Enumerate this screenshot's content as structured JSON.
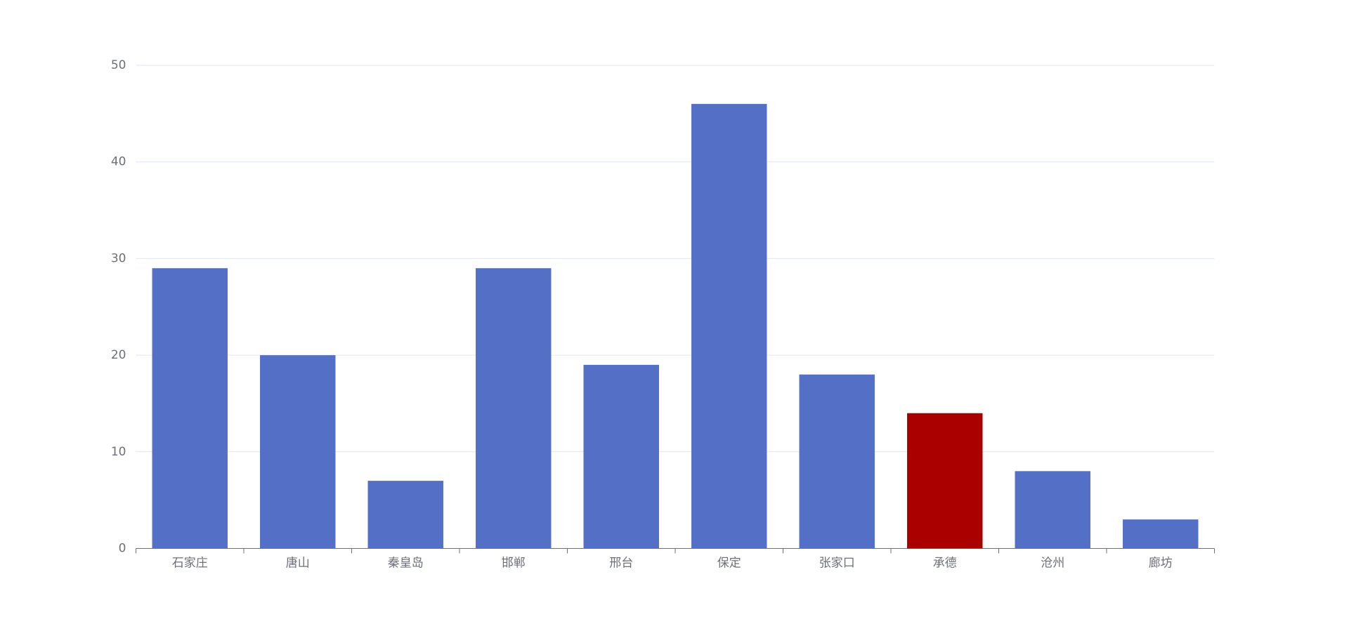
{
  "chart_data": {
    "type": "bar",
    "categories": [
      "石家庄",
      "唐山",
      "秦皇岛",
      "邯郸",
      "邢台",
      "保定",
      "张家口",
      "承德",
      "沧州",
      "廊坊"
    ],
    "values": [
      29,
      20,
      7,
      29,
      19,
      46,
      18,
      14,
      8,
      3
    ],
    "colors": [
      "#5470c6",
      "#5470c6",
      "#5470c6",
      "#5470c6",
      "#5470c6",
      "#5470c6",
      "#5470c6",
      "#aa0000",
      "#5470c6",
      "#5470c6"
    ],
    "ylim": [
      0,
      50
    ],
    "yticks": [
      0,
      10,
      20,
      30,
      40,
      50
    ],
    "grid": true
  }
}
